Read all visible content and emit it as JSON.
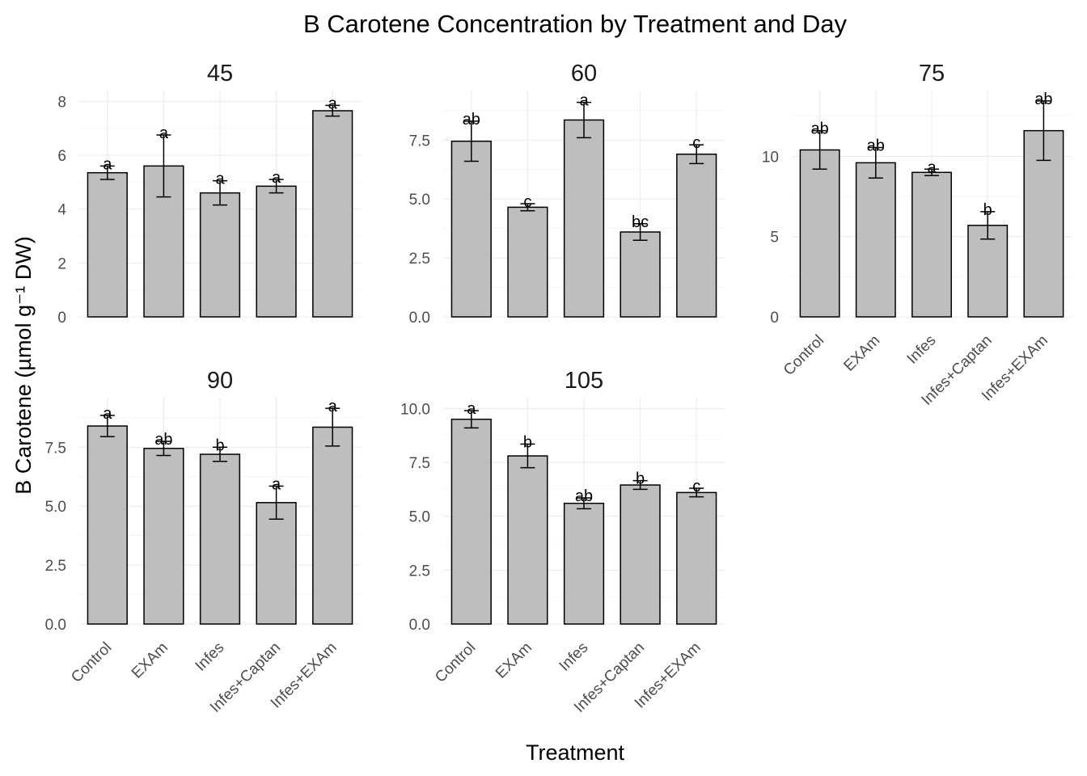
{
  "chart_data": {
    "type": "bar",
    "title": "B Carotene Concentration by Treatment and Day",
    "xlabel": "Treatment",
    "ylabel": "B Carotene (µmol g⁻¹ DW)",
    "categories": [
      "Control",
      "EXAm",
      "Infes",
      "Infes+Captan",
      "Infes+EXAm"
    ],
    "grid": true,
    "bar_color": "#bebebe",
    "bar_outline": "#000000",
    "panels": [
      {
        "label": "45",
        "ylim": [
          0,
          8.4
        ],
        "yticks": [
          0,
          2,
          4,
          6,
          8
        ],
        "ytick_labels": [
          "0",
          "2",
          "4",
          "6",
          "8"
        ],
        "values": [
          5.35,
          5.6,
          4.6,
          4.85,
          7.65
        ],
        "errors": [
          0.25,
          1.15,
          0.45,
          0.25,
          0.2
        ],
        "letters": [
          "a",
          "a",
          "a",
          "a",
          "a"
        ]
      },
      {
        "label": "60",
        "ylim": [
          0,
          9.6
        ],
        "yticks": [
          0,
          2.5,
          5,
          7.5
        ],
        "ytick_labels": [
          "0.0",
          "2.5",
          "5.0",
          "7.5"
        ],
        "values": [
          7.45,
          4.65,
          8.35,
          3.6,
          6.9
        ],
        "errors": [
          0.85,
          0.15,
          0.75,
          0.35,
          0.4
        ],
        "letters": [
          "ab",
          "c",
          "a",
          "bc",
          "c"
        ]
      },
      {
        "label": "75",
        "ylim": [
          0,
          14.1
        ],
        "yticks": [
          0,
          5,
          10
        ],
        "ytick_labels": [
          "0",
          "5",
          "10"
        ],
        "values": [
          10.4,
          9.6,
          9.0,
          5.7,
          11.6
        ],
        "errors": [
          1.2,
          0.95,
          0.2,
          0.85,
          1.85
        ],
        "letters": [
          "ab",
          "ab",
          "a",
          "b",
          "ab"
        ]
      },
      {
        "label": "90",
        "ylim": [
          0,
          9.6
        ],
        "yticks": [
          0,
          2.5,
          5,
          7.5
        ],
        "ytick_labels": [
          "0.0",
          "2.5",
          "5.0",
          "7.5"
        ],
        "values": [
          8.4,
          7.45,
          7.2,
          5.15,
          8.35
        ],
        "errors": [
          0.45,
          0.3,
          0.3,
          0.7,
          0.8
        ],
        "letters": [
          "a",
          "ab",
          "b",
          "a",
          "a"
        ]
      },
      {
        "label": "105",
        "ylim": [
          0,
          10.5
        ],
        "yticks": [
          0,
          2.5,
          5,
          7.5,
          10
        ],
        "ytick_labels": [
          "0.0",
          "2.5",
          "5.0",
          "7.5",
          "10.0"
        ],
        "values": [
          9.5,
          7.8,
          5.6,
          6.45,
          6.1
        ],
        "errors": [
          0.4,
          0.55,
          0.25,
          0.2,
          0.2
        ],
        "letters": [
          "a",
          "b",
          "ab",
          "b",
          "c"
        ]
      }
    ]
  }
}
